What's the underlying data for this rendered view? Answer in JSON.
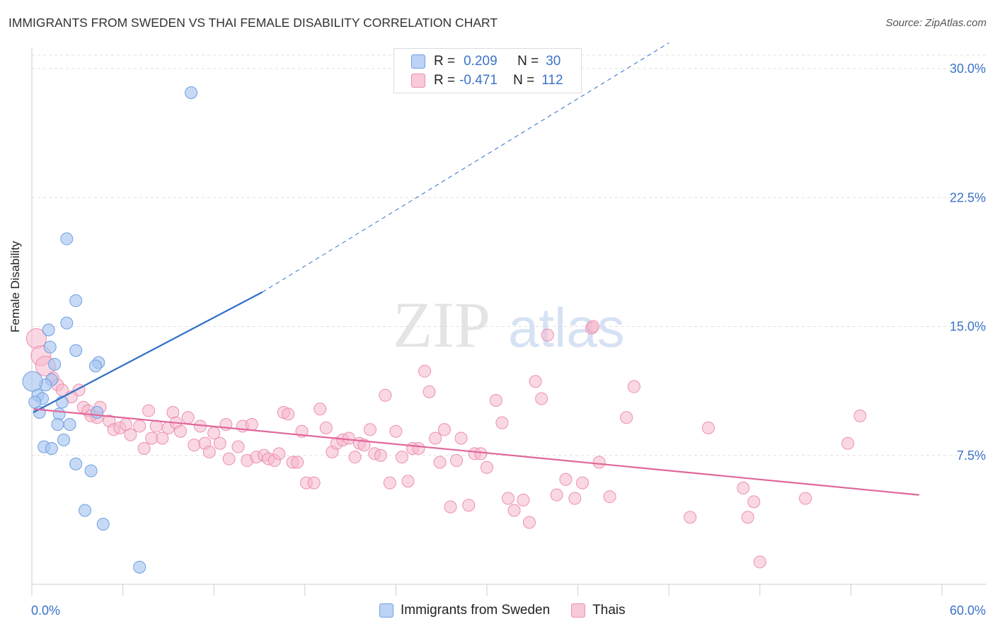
{
  "title": "IMMIGRANTS FROM SWEDEN VS THAI FEMALE DISABILITY CORRELATION CHART",
  "source": "Source: ZipAtlas.com",
  "watermark": {
    "part1": "ZIP",
    "part2": "atlas"
  },
  "legend_top": {
    "rows": [
      {
        "r_label": "R =",
        "r_value": "0.209",
        "n_label": "N =",
        "n_value": "30"
      },
      {
        "r_label": "R =",
        "r_value": "-0.471",
        "n_label": "N =",
        "n_value": "112"
      }
    ]
  },
  "legend_bottom": [
    "Immigrants from Sweden",
    "Thais"
  ],
  "colors": {
    "sweden_fill": "#a9c6f0",
    "sweden_stroke": "#6f9fe3",
    "sweden_line": "#2f6fc8",
    "thai_fill": "#f6b8cc",
    "thai_stroke": "#ec8fb0",
    "thai_line": "#e0679a",
    "tick_text": "#3b73c8",
    "grid": "#e0e0e0"
  },
  "chart_data": {
    "type": "scatter",
    "title": "IMMIGRANTS FROM SWEDEN VS THAI FEMALE DISABILITY CORRELATION CHART",
    "xlabel": "",
    "ylabel": "Female Disability",
    "xlim": [
      0,
      60
    ],
    "ylim": [
      0,
      31.5
    ],
    "x_tick_labels": [
      "0.0%",
      "60.0%"
    ],
    "y_ticks": [
      7.5,
      15.0,
      22.5,
      30.0
    ],
    "y_tick_labels": [
      "7.5%",
      "15.0%",
      "22.5%",
      "30.0%"
    ],
    "grid": "horizontal dashed",
    "legend_position": "top-center",
    "series": [
      {
        "name": "Immigrants from Sweden",
        "r": 0.209,
        "n": 30,
        "trend": {
          "x": [
            0.1,
            15.2
          ],
          "y": [
            10.0,
            17.0
          ],
          "dashed_to": [
            42.0,
            31.5
          ]
        },
        "points": [
          [
            10.5,
            28.6
          ],
          [
            2.3,
            20.1
          ],
          [
            2.9,
            16.5
          ],
          [
            2.3,
            15.2
          ],
          [
            1.1,
            14.8
          ],
          [
            1.2,
            13.8
          ],
          [
            2.9,
            13.6
          ],
          [
            4.4,
            12.9
          ],
          [
            4.2,
            12.7
          ],
          [
            1.5,
            12.8
          ],
          [
            1.3,
            11.9
          ],
          [
            0.9,
            11.6
          ],
          [
            0.05,
            11.8
          ],
          [
            0.4,
            11.0
          ],
          [
            0.7,
            10.8
          ],
          [
            0.2,
            10.6
          ],
          [
            2.0,
            10.6
          ],
          [
            0.5,
            10.0
          ],
          [
            1.8,
            9.9
          ],
          [
            4.3,
            10.0
          ],
          [
            1.7,
            9.3
          ],
          [
            2.5,
            9.3
          ],
          [
            2.1,
            8.4
          ],
          [
            0.8,
            8.0
          ],
          [
            1.3,
            7.9
          ],
          [
            2.9,
            7.0
          ],
          [
            3.9,
            6.6
          ],
          [
            3.5,
            4.3
          ],
          [
            4.7,
            3.5
          ],
          [
            7.1,
            1.0
          ]
        ]
      },
      {
        "name": "Thais",
        "r": -0.471,
        "n": 112,
        "trend": {
          "x": [
            0.1,
            58.5
          ],
          "y": [
            10.2,
            5.2
          ]
        },
        "points": [
          [
            0.3,
            14.3
          ],
          [
            0.6,
            13.3
          ],
          [
            0.9,
            12.7
          ],
          [
            1.4,
            12.0
          ],
          [
            1.7,
            11.6
          ],
          [
            2.0,
            11.3
          ],
          [
            3.1,
            11.3
          ],
          [
            2.6,
            10.9
          ],
          [
            3.4,
            10.3
          ],
          [
            3.7,
            10.1
          ],
          [
            4.5,
            10.3
          ],
          [
            3.9,
            9.8
          ],
          [
            4.3,
            9.7
          ],
          [
            5.1,
            9.5
          ],
          [
            5.4,
            9.0
          ],
          [
            5.8,
            9.1
          ],
          [
            6.2,
            9.3
          ],
          [
            6.5,
            8.7
          ],
          [
            7.1,
            9.2
          ],
          [
            7.4,
            7.9
          ],
          [
            7.7,
            10.1
          ],
          [
            7.9,
            8.5
          ],
          [
            8.2,
            9.2
          ],
          [
            8.6,
            8.5
          ],
          [
            9.0,
            9.1
          ],
          [
            9.3,
            10.0
          ],
          [
            9.5,
            9.4
          ],
          [
            9.8,
            8.9
          ],
          [
            10.3,
            9.7
          ],
          [
            10.7,
            8.1
          ],
          [
            11.1,
            9.2
          ],
          [
            11.4,
            8.2
          ],
          [
            11.7,
            7.7
          ],
          [
            12.0,
            8.8
          ],
          [
            12.4,
            8.2
          ],
          [
            12.8,
            9.3
          ],
          [
            13.0,
            7.3
          ],
          [
            13.6,
            8.0
          ],
          [
            13.9,
            9.2
          ],
          [
            14.2,
            7.2
          ],
          [
            14.5,
            9.3
          ],
          [
            14.8,
            7.4
          ],
          [
            15.3,
            7.5
          ],
          [
            15.6,
            7.3
          ],
          [
            16.0,
            7.2
          ],
          [
            16.3,
            7.6
          ],
          [
            16.6,
            10.0
          ],
          [
            16.9,
            9.9
          ],
          [
            17.2,
            7.1
          ],
          [
            17.5,
            7.1
          ],
          [
            17.8,
            8.9
          ],
          [
            18.1,
            5.9
          ],
          [
            18.6,
            5.9
          ],
          [
            19.0,
            10.2
          ],
          [
            19.4,
            9.1
          ],
          [
            19.8,
            7.7
          ],
          [
            20.1,
            8.2
          ],
          [
            20.5,
            8.4
          ],
          [
            20.9,
            8.5
          ],
          [
            21.3,
            7.4
          ],
          [
            21.6,
            8.2
          ],
          [
            21.9,
            8.1
          ],
          [
            22.3,
            9.0
          ],
          [
            22.6,
            7.6
          ],
          [
            23.0,
            7.5
          ],
          [
            23.3,
            11.0
          ],
          [
            23.6,
            5.9
          ],
          [
            24.0,
            8.9
          ],
          [
            24.4,
            7.4
          ],
          [
            24.8,
            6.0
          ],
          [
            25.1,
            7.9
          ],
          [
            25.5,
            7.9
          ],
          [
            25.9,
            12.4
          ],
          [
            26.2,
            11.2
          ],
          [
            26.6,
            8.5
          ],
          [
            26.9,
            7.1
          ],
          [
            27.2,
            9.0
          ],
          [
            27.6,
            4.5
          ],
          [
            28.0,
            7.2
          ],
          [
            28.3,
            8.5
          ],
          [
            28.8,
            4.6
          ],
          [
            29.2,
            7.6
          ],
          [
            29.6,
            7.6
          ],
          [
            30.0,
            6.8
          ],
          [
            30.6,
            10.7
          ],
          [
            31.0,
            9.4
          ],
          [
            31.4,
            5.0
          ],
          [
            31.8,
            4.3
          ],
          [
            32.4,
            4.9
          ],
          [
            32.8,
            3.6
          ],
          [
            33.2,
            11.8
          ],
          [
            33.6,
            10.8
          ],
          [
            34.0,
            14.5
          ],
          [
            34.6,
            5.2
          ],
          [
            35.2,
            6.1
          ],
          [
            35.8,
            5.0
          ],
          [
            36.3,
            5.9
          ],
          [
            36.9,
            14.9
          ],
          [
            37.4,
            7.1
          ],
          [
            38.1,
            5.1
          ],
          [
            39.2,
            9.7
          ],
          [
            39.7,
            11.5
          ],
          [
            43.4,
            3.9
          ],
          [
            44.6,
            9.1
          ],
          [
            46.9,
            5.6
          ],
          [
            47.2,
            3.9
          ],
          [
            47.6,
            4.8
          ],
          [
            48.0,
            1.3
          ],
          [
            51.0,
            5.0
          ],
          [
            53.8,
            8.2
          ],
          [
            54.6,
            9.8
          ],
          [
            37.0,
            15.0
          ]
        ]
      }
    ]
  }
}
